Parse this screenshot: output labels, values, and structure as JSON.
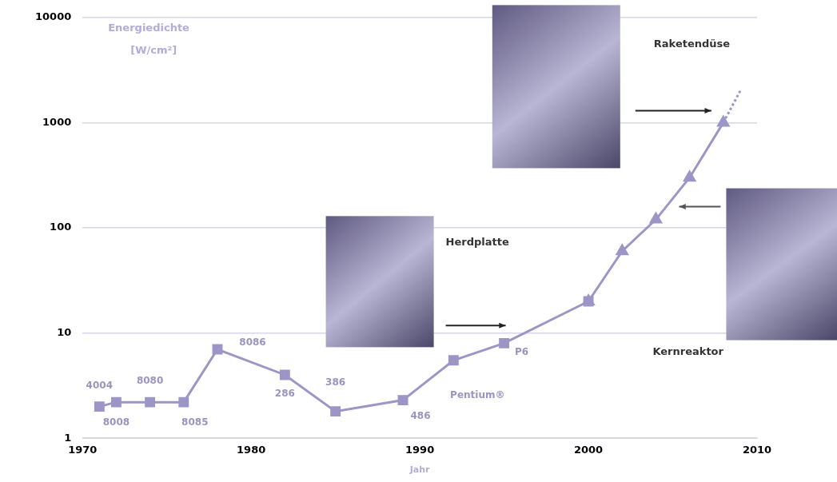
{
  "chart_data": {
    "type": "line",
    "ylabel": [
      "Energiedichte",
      "[W/cm²]"
    ],
    "xlabel": "Jahr",
    "x": [
      1971,
      1972,
      1974,
      1976,
      1978,
      1982,
      1985,
      1989,
      1992,
      1995,
      2000,
      2002,
      2004,
      2006,
      2008,
      2009
    ],
    "series": [
      {
        "color": "#9b96c6",
        "marker": "square",
        "line_style": "solid",
        "values": [
          2,
          2.2,
          2.2,
          2.2,
          7,
          4,
          1.8,
          2.3,
          5.5,
          8,
          20,
          null,
          null,
          null,
          null,
          null
        ],
        "point_labels": [
          "4004",
          "8008",
          "8080",
          "8085",
          "8086",
          "286",
          "386",
          "486",
          "Pentium®",
          "P6",
          null,
          null,
          null,
          null,
          null,
          null
        ]
      },
      {
        "color": "#9b96c6",
        "marker": "triangle",
        "line_style": "solid",
        "values": [
          null,
          null,
          null,
          null,
          null,
          null,
          null,
          null,
          null,
          null,
          20,
          60,
          120,
          300,
          1000,
          null
        ]
      },
      {
        "color": "#9b96c6",
        "marker": "none",
        "line_style": "dotted",
        "values": [
          null,
          null,
          null,
          null,
          null,
          null,
          null,
          null,
          null,
          null,
          null,
          null,
          null,
          null,
          1000,
          2000
        ]
      }
    ],
    "xlim": [
      1970,
      2010
    ],
    "xticks": [
      1970,
      1980,
      1990,
      2000,
      2010
    ],
    "ylim": [
      1,
      10000
    ],
    "yticks": [
      1,
      10,
      100,
      1000,
      10000
    ],
    "log": "y",
    "grid": true,
    "annotations": [
      {
        "text": "Herdplatte",
        "x": 1995,
        "y": 8
      },
      {
        "text": "Kernreaktor",
        "x": 2004,
        "y": 120
      },
      {
        "text": "Raketendüse",
        "x": 2008,
        "y": 1000
      }
    ]
  }
}
